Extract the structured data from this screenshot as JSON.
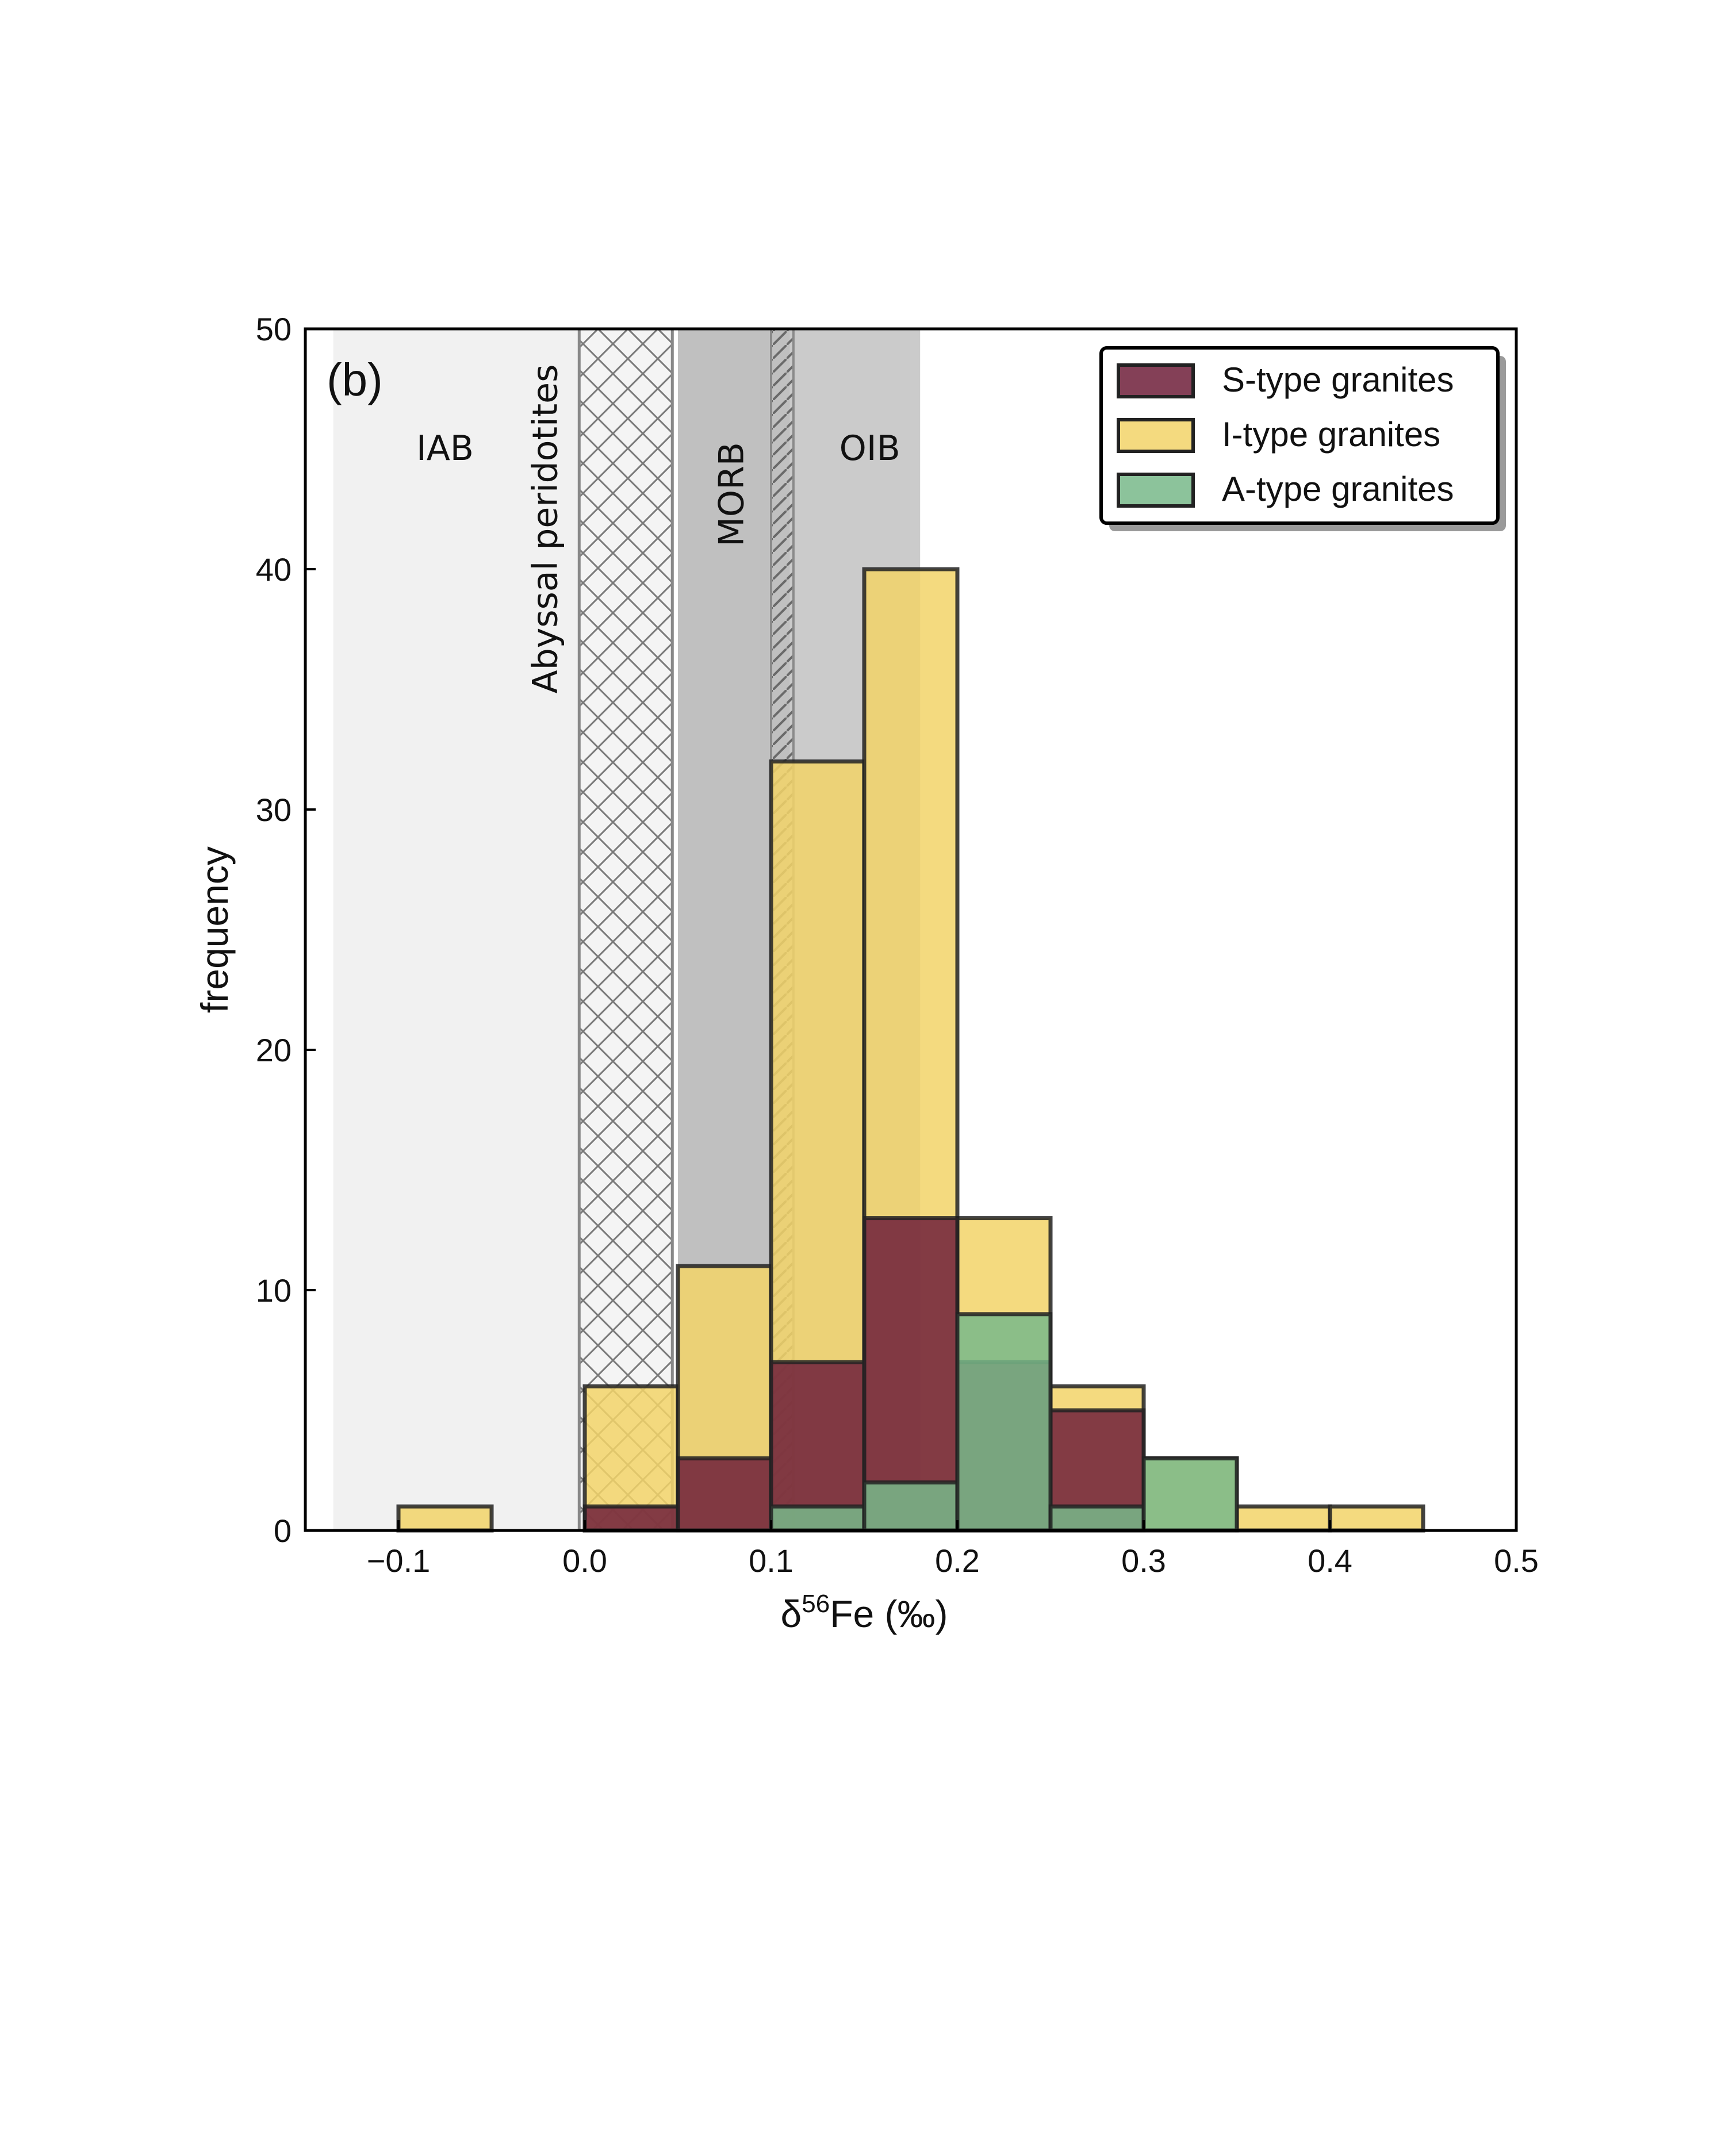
{
  "chart_data": {
    "type": "bar",
    "panel_label": "(b)",
    "xlabel_prefix": "δ",
    "xlabel_sup": "56",
    "xlabel_suffix": "Fe (‰)",
    "ylabel": "frequency",
    "xlim": [
      -0.15,
      0.5
    ],
    "ylim": [
      0,
      50
    ],
    "xticks": [
      -0.1,
      0.0,
      0.1,
      0.2,
      0.3,
      0.4,
      0.5
    ],
    "xtick_labels": [
      "−0.1",
      "0.0",
      "0.1",
      "0.2",
      "0.3",
      "0.4",
      "0.5"
    ],
    "yticks": [
      0,
      10,
      20,
      30,
      40,
      50
    ],
    "ytick_labels": [
      "0",
      "10",
      "20",
      "30",
      "40",
      "50"
    ],
    "bin_width": 0.05,
    "bin_starts": [
      -0.1,
      -0.05,
      0.0,
      0.05,
      0.1,
      0.15,
      0.2,
      0.25,
      0.3,
      0.35,
      0.4
    ],
    "series": [
      {
        "name": "I-type granites",
        "color": "#f2d469",
        "values": [
          1,
          0,
          6,
          11,
          32,
          40,
          13,
          6,
          3,
          1,
          1
        ]
      },
      {
        "name": "S-type granites",
        "color": "#6e1f3a",
        "values": [
          0,
          0,
          1,
          3,
          7,
          13,
          7,
          5,
          0,
          0,
          0
        ]
      },
      {
        "name": "A-type granites",
        "color": "#78b88a",
        "values": [
          0,
          0,
          0,
          0,
          1,
          2,
          9,
          1,
          3,
          0,
          0
        ]
      }
    ],
    "reference_ranges": [
      {
        "label": "IAB",
        "x": [
          -0.135,
          0.0
        ],
        "style": "light-gray"
      },
      {
        "label": "Abyssal peridotites",
        "x": [
          -0.003,
          0.047
        ],
        "style": "crosshatch"
      },
      {
        "label": "MORB",
        "x": [
          0.05,
          0.11
        ],
        "style": "dark-gray"
      },
      {
        "label": "OIB",
        "x": [
          0.1,
          0.18
        ],
        "style": "mid-gray"
      }
    ],
    "legend_position": "top-right",
    "grid": false
  }
}
